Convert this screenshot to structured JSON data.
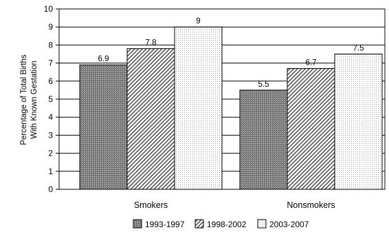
{
  "chart_data": {
    "type": "bar",
    "categories": [
      "Smokers",
      "Nonsmokers"
    ],
    "series": [
      {
        "name": "1993-1997",
        "values": [
          6.9,
          5.5
        ],
        "pattern": "crosshatch-dark"
      },
      {
        "name": "1998-2002",
        "values": [
          7.8,
          6.7
        ],
        "pattern": "diagonal-hatch"
      },
      {
        "name": "2003-2007",
        "values": [
          9,
          7.5
        ],
        "pattern": "light-dots"
      }
    ],
    "ylabel_lines": [
      "Percentage of Total Births",
      "With Known Gestation"
    ],
    "xlabel": "",
    "ylim": [
      0,
      10
    ],
    "yticks": [
      0,
      1,
      2,
      3,
      4,
      5,
      6,
      7,
      8,
      9,
      10
    ],
    "grid": true,
    "legend_position": "bottom-center",
    "data_labels": [
      [
        "6.9",
        "5.5"
      ],
      [
        "7.8",
        "6.7"
      ],
      [
        "9",
        "7.5"
      ]
    ]
  }
}
